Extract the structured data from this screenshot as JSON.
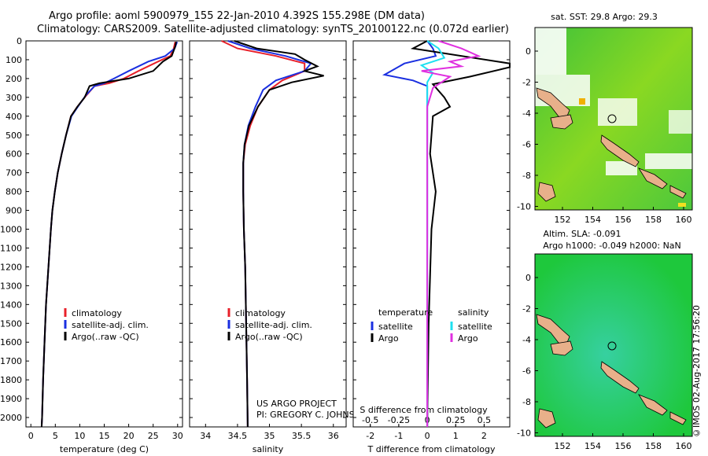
{
  "header": {
    "line1": "Argo profile: aoml 5900979_155 22-Jan-2010 4.392S 155.298E (DM data)",
    "line2": "Climatology: CARS2009. Satellite-adjusted climatology: synTS_20100122.nc (0.072d earlier)"
  },
  "colors": {
    "climatology": "#e8202a",
    "satellite": "#1a2fe0",
    "argo": "#000000",
    "salinity_satellite": "#1ee0f0",
    "salinity_argo": "#e030e0",
    "land": "#e8b08a"
  },
  "chart_data": [
    {
      "type": "line",
      "panel": "temperature",
      "xlabel": "temperature (deg C)",
      "xlim": [
        -1,
        31
      ],
      "xticks": [
        0,
        5,
        10,
        15,
        20,
        25,
        30
      ],
      "ylim": [
        2050,
        0
      ],
      "yticks": [
        0,
        100,
        200,
        300,
        400,
        500,
        600,
        700,
        800,
        900,
        1000,
        1100,
        1200,
        1300,
        1400,
        1500,
        1600,
        1700,
        1800,
        1900,
        2000
      ],
      "legend": [
        "climatology",
        "satellite-adj. clim.",
        "Argo(..raw -QC)"
      ],
      "series": [
        {
          "name": "climatology",
          "points": [
            [
              29.5,
              5
            ],
            [
              29.2,
              40
            ],
            [
              28.5,
              80
            ],
            [
              26,
              110
            ],
            [
              22,
              160
            ],
            [
              19,
              200
            ],
            [
              16,
              225
            ],
            [
              13,
              240
            ],
            [
              11,
              300
            ],
            [
              9.5,
              350
            ],
            [
              8.2,
              400
            ],
            [
              7.2,
              500
            ],
            [
              6.3,
              600
            ],
            [
              5.5,
              700
            ],
            [
              4.9,
              800
            ],
            [
              4.4,
              900
            ],
            [
              4.1,
              1000
            ],
            [
              3.6,
              1200
            ],
            [
              3.1,
              1400
            ],
            [
              2.8,
              1600
            ],
            [
              2.5,
              1800
            ],
            [
              2.3,
              2000
            ],
            [
              2.2,
              2050
            ]
          ]
        },
        {
          "name": "satellite-adj. clim.",
          "points": [
            [
              29.9,
              5
            ],
            [
              29.4,
              40
            ],
            [
              27.5,
              80
            ],
            [
              24,
              110
            ],
            [
              20,
              160
            ],
            [
              17,
              200
            ],
            [
              15,
              225
            ],
            [
              13,
              240
            ],
            [
              11.2,
              290
            ],
            [
              9.6,
              350
            ],
            [
              8.3,
              400
            ],
            [
              7.2,
              500
            ],
            [
              6.3,
              600
            ],
            [
              5.5,
              700
            ],
            [
              4.9,
              800
            ],
            [
              4.4,
              900
            ],
            [
              4.1,
              1000
            ],
            [
              3.6,
              1200
            ],
            [
              3.1,
              1400
            ],
            [
              2.8,
              1600
            ],
            [
              2.5,
              1800
            ],
            [
              2.3,
              2000
            ],
            [
              2.2,
              2050
            ]
          ]
        },
        {
          "name": "Argo(..raw -QC)",
          "points": [
            [
              29.7,
              5
            ],
            [
              29.5,
              30
            ],
            [
              28.8,
              80
            ],
            [
              27,
              110
            ],
            [
              25,
              160
            ],
            [
              20,
              200
            ],
            [
              14,
              225
            ],
            [
              12,
              240
            ],
            [
              11,
              300
            ],
            [
              9.5,
              350
            ],
            [
              8.2,
              400
            ],
            [
              7.2,
              500
            ],
            [
              6.3,
              600
            ],
            [
              5.5,
              700
            ],
            [
              4.9,
              800
            ],
            [
              4.4,
              900
            ],
            [
              4.1,
              1000
            ],
            [
              3.6,
              1200
            ],
            [
              3.1,
              1400
            ],
            [
              2.8,
              1600
            ],
            [
              2.5,
              1800
            ],
            [
              2.3,
              2000
            ],
            [
              2.2,
              2050
            ]
          ]
        }
      ]
    },
    {
      "type": "line",
      "panel": "salinity",
      "xlabel": "salinity",
      "xlim": [
        33.75,
        36.2
      ],
      "xticks": [
        34,
        34.5,
        35,
        35.5,
        36
      ],
      "ylim": [
        2050,
        0
      ],
      "legend": [
        "climatology",
        "satellite-adj. clim.",
        "Argo(..raw -QC)"
      ],
      "annotation": [
        "US ARGO PROJECT",
        "PI: GREGORY C. JOHNSON"
      ],
      "series": [
        {
          "name": "climatology",
          "points": [
            [
              34.25,
              0
            ],
            [
              34.5,
              40
            ],
            [
              35.1,
              80
            ],
            [
              35.55,
              120
            ],
            [
              35.55,
              160
            ],
            [
              35.2,
              210
            ],
            [
              35.0,
              260
            ],
            [
              34.82,
              350
            ],
            [
              34.7,
              450
            ],
            [
              34.62,
              550
            ],
            [
              34.59,
              650
            ],
            [
              34.59,
              800
            ],
            [
              34.6,
              1000
            ],
            [
              34.62,
              1200
            ],
            [
              34.63,
              1400
            ],
            [
              34.64,
              1600
            ],
            [
              34.65,
              1800
            ],
            [
              34.66,
              2050
            ]
          ]
        },
        {
          "name": "satellite-adj. clim.",
          "points": [
            [
              34.35,
              0
            ],
            [
              34.7,
              40
            ],
            [
              35.25,
              80
            ],
            [
              35.65,
              120
            ],
            [
              35.55,
              160
            ],
            [
              35.1,
              210
            ],
            [
              34.9,
              260
            ],
            [
              34.78,
              350
            ],
            [
              34.67,
              450
            ],
            [
              34.61,
              550
            ],
            [
              34.59,
              650
            ],
            [
              34.59,
              800
            ],
            [
              34.6,
              1000
            ],
            [
              34.62,
              1200
            ],
            [
              34.63,
              1400
            ],
            [
              34.64,
              1600
            ],
            [
              34.65,
              1800
            ],
            [
              34.66,
              2050
            ]
          ]
        },
        {
          "name": "Argo(..raw -QC)",
          "points": [
            [
              34.45,
              0
            ],
            [
              34.8,
              40
            ],
            [
              35.4,
              70
            ],
            [
              35.55,
              100
            ],
            [
              35.75,
              135
            ],
            [
              35.55,
              160
            ],
            [
              35.85,
              185
            ],
            [
              35.35,
              220
            ],
            [
              35.0,
              260
            ],
            [
              34.82,
              350
            ],
            [
              34.68,
              450
            ],
            [
              34.61,
              550
            ],
            [
              34.59,
              650
            ],
            [
              34.59,
              800
            ],
            [
              34.6,
              1000
            ],
            [
              34.62,
              1200
            ],
            [
              34.63,
              1400
            ],
            [
              34.64,
              1600
            ],
            [
              34.65,
              1800
            ],
            [
              34.66,
              2050
            ]
          ]
        }
      ]
    },
    {
      "type": "line",
      "panel": "difference",
      "xlabel": "T difference from climatology",
      "xlabel_top": "S difference from climatology",
      "xlim_T": [
        -2.6,
        2.9
      ],
      "xticks_T": [
        -2,
        -1,
        0,
        1,
        2
      ],
      "xlim_S": [
        -0.65,
        0.725
      ],
      "xticks_S": [
        -0.5,
        -0.25,
        0,
        0.25,
        0.5
      ],
      "ylim": [
        2050,
        0
      ],
      "legend_T_title": "temperature",
      "legend_S_title": "salinity",
      "legend": [
        "satellite",
        "Argo",
        "satellite",
        "Argo"
      ],
      "series": [
        {
          "name": "satellite",
          "variable": "T",
          "points": [
            [
              0,
              0
            ],
            [
              0.2,
              40
            ],
            [
              0.3,
              80
            ],
            [
              -0.8,
              120
            ],
            [
              -1.5,
              180
            ],
            [
              -0.5,
              210
            ],
            [
              0,
              240
            ],
            [
              0,
              400
            ],
            [
              0,
              2050
            ]
          ]
        },
        {
          "name": "Argo",
          "variable": "T",
          "points": [
            [
              0,
              0
            ],
            [
              -0.5,
              40
            ],
            [
              2.9,
              120
            ],
            [
              2.9,
              140
            ],
            [
              1.5,
              190
            ],
            [
              0.2,
              230
            ],
            [
              0.6,
              300
            ],
            [
              0.8,
              350
            ],
            [
              0.2,
              400
            ],
            [
              0.1,
              600
            ],
            [
              0.3,
              800
            ],
            [
              0.15,
              1000
            ],
            [
              0.05,
              1500
            ],
            [
              0,
              2050
            ]
          ]
        },
        {
          "name": "satellite",
          "variable": "S",
          "points": [
            [
              0,
              0
            ],
            [
              0.1,
              40
            ],
            [
              0.15,
              90
            ],
            [
              -0.05,
              130
            ],
            [
              0.05,
              170
            ],
            [
              0,
              220
            ],
            [
              0,
              2050
            ]
          ]
        },
        {
          "name": "Argo",
          "variable": "S",
          "points": [
            [
              0.1,
              0
            ],
            [
              0.3,
              40
            ],
            [
              0.45,
              80
            ],
            [
              0.2,
              110
            ],
            [
              0.3,
              135
            ],
            [
              -0.05,
              160
            ],
            [
              0.2,
              190
            ],
            [
              0.05,
              250
            ],
            [
              0,
              350
            ],
            [
              0,
              2050
            ]
          ]
        }
      ]
    }
  ],
  "maps": {
    "top_title": "sat. SST: 29.8 Argo: 29.3",
    "bottom_title_1": "Altim. SLA: -0.091",
    "bottom_title_2": "Argo h1000: -0.049 h2000: NaN",
    "xticks": [
      "152",
      "154",
      "156",
      "158",
      "160"
    ],
    "yticks": [
      "0",
      "-2",
      "-4",
      "-6",
      "-8",
      "-10"
    ],
    "marker": {
      "lon": 155.298,
      "lat": -4.392
    }
  },
  "footer": {
    "credit": "©IMOS 02-Aug-2017 17:56:20"
  }
}
